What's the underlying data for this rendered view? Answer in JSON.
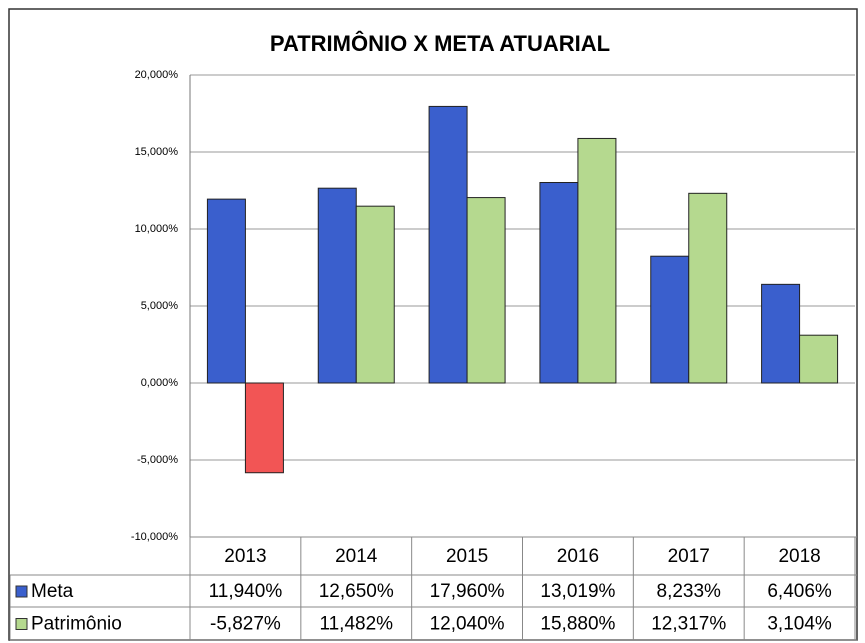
{
  "chart_data": {
    "type": "bar",
    "title": "PATRIMÔNIO X META ATUARIAL",
    "categories": [
      "2013",
      "2014",
      "2015",
      "2016",
      "2017",
      "2018"
    ],
    "series": [
      {
        "name": "Meta",
        "color": "#3a5fcd",
        "values": [
          11.94,
          12.65,
          17.96,
          13.019,
          8.233,
          6.406
        ],
        "value_labels": [
          "11,940%",
          "12,650%",
          "17,960%",
          "13,019%",
          "8,233%",
          "6,406%"
        ]
      },
      {
        "name": "Patrimônio",
        "color": "#b5d98f",
        "negative_color": "#f25555",
        "values": [
          -5.827,
          11.482,
          12.04,
          15.88,
          12.317,
          3.104
        ],
        "value_labels": [
          "-5,827%",
          "11,482%",
          "12,040%",
          "15,880%",
          "12,317%",
          "3,104%"
        ]
      }
    ],
    "ylim": [
      -10,
      20
    ],
    "yticks": [
      {
        "value": -10,
        "label": "-10,000%"
      },
      {
        "value": -5,
        "label": "-5,000%"
      },
      {
        "value": 0,
        "label": "0,000%"
      },
      {
        "value": 5,
        "label": "5,000%"
      },
      {
        "value": 10,
        "label": "10,000%"
      },
      {
        "value": 15,
        "label": "15,000%"
      },
      {
        "value": 20,
        "label": "20,000%"
      }
    ],
    "grid": true,
    "legend": "data-table"
  }
}
